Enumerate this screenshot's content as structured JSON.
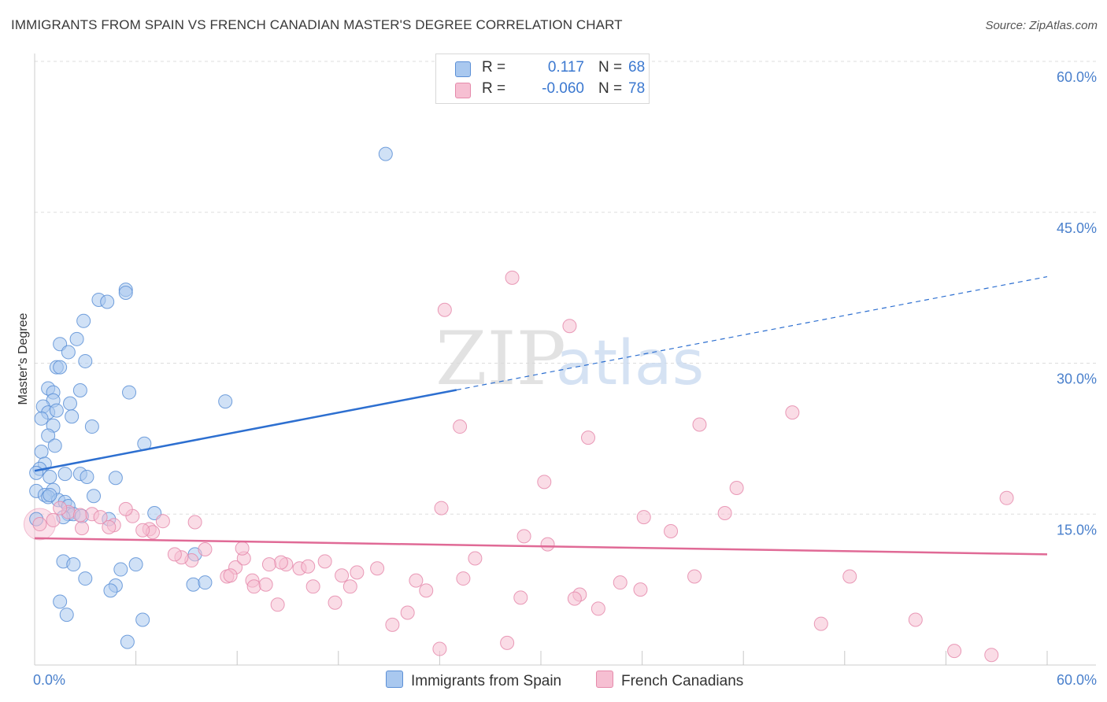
{
  "title": "IMMIGRANTS FROM SPAIN VS FRENCH CANADIAN MASTER'S DEGREE CORRELATION CHART",
  "source": "Source: ZipAtlas.com",
  "watermark": {
    "zip": "ZIP",
    "atlas": "atlas"
  },
  "legend": {
    "series": [
      {
        "r_label": "R =",
        "r_value": "0.117",
        "n_label": "N =",
        "n_value": "68"
      },
      {
        "r_label": "R =",
        "r_value": "-0.060",
        "n_label": "N =",
        "n_value": "78"
      }
    ]
  },
  "colors": {
    "blue_fill": "#a9c8ef",
    "blue_stroke": "#5b8fd6",
    "blue_line": "#2d6fd0",
    "pink_fill": "#f6bfd2",
    "pink_stroke": "#e58aab",
    "pink_line": "#e06a96",
    "tick": "#4a80cc",
    "grid": "#dddddd"
  },
  "chart_data": {
    "type": "scatter",
    "title": "IMMIGRANTS FROM SPAIN VS FRENCH CANADIAN MASTER'S DEGREE CORRELATION CHART",
    "xlabel": "",
    "ylabel": "Master's Degree",
    "xlim": [
      0,
      60
    ],
    "ylim": [
      0,
      60
    ],
    "x_tick_labels": [
      "0.0%",
      "60.0%"
    ],
    "y_ticks": [
      15,
      30,
      45,
      60
    ],
    "y_tick_labels": [
      "15.0%",
      "30.0%",
      "45.0%",
      "60.0%"
    ],
    "grid": true,
    "series": [
      {
        "name": "Immigrants from Spain",
        "color": "blue",
        "R": 0.117,
        "N": 68,
        "trend": {
          "x_solid": [
            0,
            25
          ],
          "x_dashed": [
            25,
            60
          ],
          "y_at_0": 19.3,
          "y_at_60": 38.6
        },
        "points": [
          [
            20.8,
            50.8
          ],
          [
            5.4,
            37.3
          ],
          [
            5.4,
            37.0
          ],
          [
            3.8,
            36.3
          ],
          [
            4.3,
            36.1
          ],
          [
            2.9,
            34.2
          ],
          [
            2.5,
            32.4
          ],
          [
            1.5,
            31.9
          ],
          [
            2.0,
            31.1
          ],
          [
            1.3,
            29.6
          ],
          [
            1.5,
            29.6
          ],
          [
            3.0,
            30.2
          ],
          [
            0.8,
            27.5
          ],
          [
            1.1,
            27.1
          ],
          [
            2.7,
            27.3
          ],
          [
            5.6,
            27.1
          ],
          [
            1.1,
            26.3
          ],
          [
            0.5,
            25.7
          ],
          [
            2.1,
            26.0
          ],
          [
            0.8,
            25.1
          ],
          [
            1.3,
            25.3
          ],
          [
            2.2,
            24.7
          ],
          [
            0.4,
            24.5
          ],
          [
            1.1,
            23.8
          ],
          [
            3.4,
            23.7
          ],
          [
            0.8,
            22.8
          ],
          [
            1.2,
            21.8
          ],
          [
            6.5,
            22.0
          ],
          [
            0.4,
            21.2
          ],
          [
            11.3,
            26.2
          ],
          [
            0.6,
            20.0
          ],
          [
            0.3,
            19.5
          ],
          [
            0.1,
            19.1
          ],
          [
            0.9,
            18.7
          ],
          [
            1.8,
            19.0
          ],
          [
            2.7,
            19.0
          ],
          [
            3.1,
            18.7
          ],
          [
            4.8,
            18.6
          ],
          [
            0.1,
            17.3
          ],
          [
            1.1,
            17.4
          ],
          [
            0.6,
            16.9
          ],
          [
            3.5,
            16.8
          ],
          [
            0.8,
            16.7
          ],
          [
            1.4,
            16.4
          ],
          [
            1.8,
            16.2
          ],
          [
            2.0,
            15.8
          ],
          [
            2.0,
            15.0
          ],
          [
            2.3,
            15.0
          ],
          [
            1.7,
            14.7
          ],
          [
            7.1,
            15.1
          ],
          [
            4.4,
            14.5
          ],
          [
            0.1,
            14.5
          ],
          [
            1.7,
            10.3
          ],
          [
            2.3,
            10.0
          ],
          [
            6.0,
            10.0
          ],
          [
            5.1,
            9.5
          ],
          [
            9.5,
            11.0
          ],
          [
            3.0,
            8.6
          ],
          [
            4.8,
            7.9
          ],
          [
            4.5,
            7.4
          ],
          [
            9.4,
            8.0
          ],
          [
            10.1,
            8.2
          ],
          [
            1.5,
            6.3
          ],
          [
            1.9,
            5.0
          ],
          [
            6.4,
            4.5
          ],
          [
            5.5,
            2.3
          ],
          [
            0.9,
            16.9
          ],
          [
            2.8,
            14.8
          ]
        ]
      },
      {
        "name": "French Canadians",
        "color": "pink",
        "R": -0.06,
        "N": 78,
        "trend": {
          "y_at_0": 12.6,
          "y_at_60": 11.0
        },
        "points": [
          [
            28.3,
            38.5
          ],
          [
            24.3,
            35.3
          ],
          [
            31.7,
            33.7
          ],
          [
            44.9,
            25.1
          ],
          [
            25.2,
            23.7
          ],
          [
            32.8,
            22.6
          ],
          [
            39.4,
            23.9
          ],
          [
            30.2,
            18.2
          ],
          [
            41.6,
            17.6
          ],
          [
            57.6,
            16.6
          ],
          [
            24.1,
            15.6
          ],
          [
            36.1,
            14.7
          ],
          [
            40.9,
            15.1
          ],
          [
            37.7,
            13.3
          ],
          [
            29.0,
            12.8
          ],
          [
            30.4,
            12.0
          ],
          [
            26.1,
            10.6
          ],
          [
            25.4,
            8.6
          ],
          [
            34.7,
            8.2
          ],
          [
            35.9,
            7.5
          ],
          [
            39.1,
            8.8
          ],
          [
            32.3,
            7.0
          ],
          [
            32.0,
            6.6
          ],
          [
            33.4,
            5.6
          ],
          [
            28.8,
            6.7
          ],
          [
            22.6,
            8.4
          ],
          [
            23.2,
            7.4
          ],
          [
            22.1,
            5.2
          ],
          [
            21.2,
            4.0
          ],
          [
            20.3,
            9.6
          ],
          [
            19.1,
            9.2
          ],
          [
            18.2,
            8.9
          ],
          [
            18.7,
            7.8
          ],
          [
            17.2,
            10.3
          ],
          [
            16.5,
            7.8
          ],
          [
            15.7,
            9.6
          ],
          [
            16.2,
            9.8
          ],
          [
            14.9,
            10.0
          ],
          [
            14.6,
            10.2
          ],
          [
            13.9,
            10.0
          ],
          [
            14.4,
            6.0
          ],
          [
            12.9,
            8.4
          ],
          [
            13.0,
            7.8
          ],
          [
            13.7,
            8.0
          ],
          [
            11.9,
            9.7
          ],
          [
            11.4,
            8.8
          ],
          [
            12.4,
            10.6
          ],
          [
            12.3,
            11.6
          ],
          [
            10.1,
            11.5
          ],
          [
            9.3,
            10.4
          ],
          [
            8.7,
            10.7
          ],
          [
            8.3,
            11.0
          ],
          [
            7.6,
            14.3
          ],
          [
            9.5,
            14.2
          ],
          [
            6.8,
            13.5
          ],
          [
            7.0,
            13.2
          ],
          [
            6.4,
            13.4
          ],
          [
            5.8,
            14.8
          ],
          [
            5.4,
            15.5
          ],
          [
            4.7,
            13.9
          ],
          [
            4.4,
            13.7
          ],
          [
            3.4,
            15.0
          ],
          [
            3.9,
            14.7
          ],
          [
            2.8,
            13.6
          ],
          [
            2.0,
            15.2
          ],
          [
            1.5,
            15.6
          ],
          [
            0.3,
            14.0
          ],
          [
            1.1,
            14.4
          ],
          [
            46.6,
            4.1
          ],
          [
            52.2,
            4.5
          ],
          [
            54.5,
            1.4
          ],
          [
            56.7,
            1.0
          ],
          [
            24.0,
            1.6
          ],
          [
            28.0,
            2.2
          ],
          [
            48.3,
            8.8
          ],
          [
            17.8,
            6.2
          ],
          [
            11.6,
            8.9
          ],
          [
            2.7,
            14.9
          ]
        ]
      }
    ]
  },
  "bottom_legend": [
    {
      "label": "Immigrants from Spain"
    },
    {
      "label": "French Canadians"
    }
  ]
}
